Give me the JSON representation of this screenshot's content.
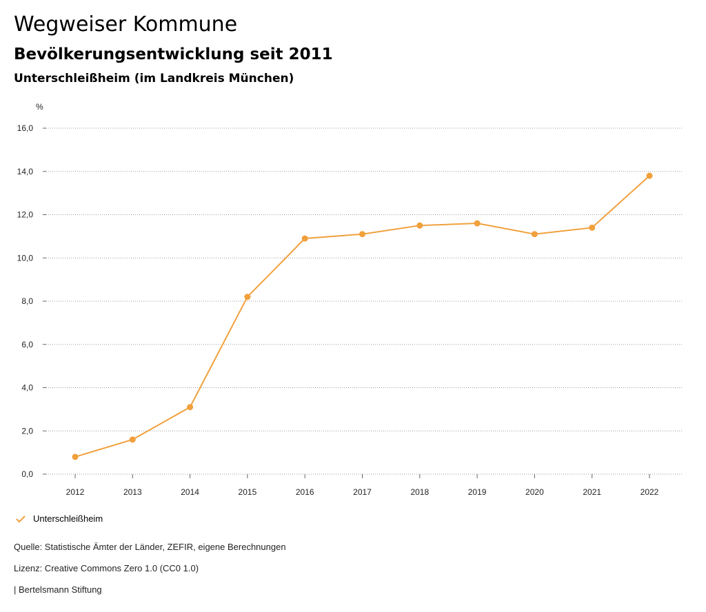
{
  "header": {
    "title": "Wegweiser Kommune",
    "subtitle": "Bevölkerungsentwicklung seit 2011",
    "region": "Unterschleißheim (im Landkreis München)"
  },
  "chart_data": {
    "type": "line",
    "unit": "%",
    "x": [
      "2012",
      "2013",
      "2014",
      "2015",
      "2016",
      "2017",
      "2018",
      "2019",
      "2020",
      "2021",
      "2022"
    ],
    "series": [
      {
        "name": "Unterschleißheim",
        "color": "#F0A03C",
        "values": [
          0.8,
          1.6,
          3.1,
          8.2,
          10.9,
          11.1,
          11.5,
          11.6,
          11.1,
          11.4,
          13.8
        ]
      }
    ],
    "ylim": [
      0,
      16
    ],
    "yticks": [
      "0,0",
      "2,0",
      "4,0",
      "6,0",
      "8,0",
      "10,0",
      "12,0",
      "14,0",
      "16,0"
    ],
    "grid": true,
    "legend_position": "bottom-left"
  },
  "legend": {
    "label": "Unterschleißheim"
  },
  "footer": {
    "source": "Quelle: Statistische Ämter der Länder, ZEFIR, eigene Berechnungen",
    "license": "Lizenz: Creative Commons Zero 1.0 (CC0 1.0)",
    "brand": "| Bertelsmann Stiftung"
  }
}
